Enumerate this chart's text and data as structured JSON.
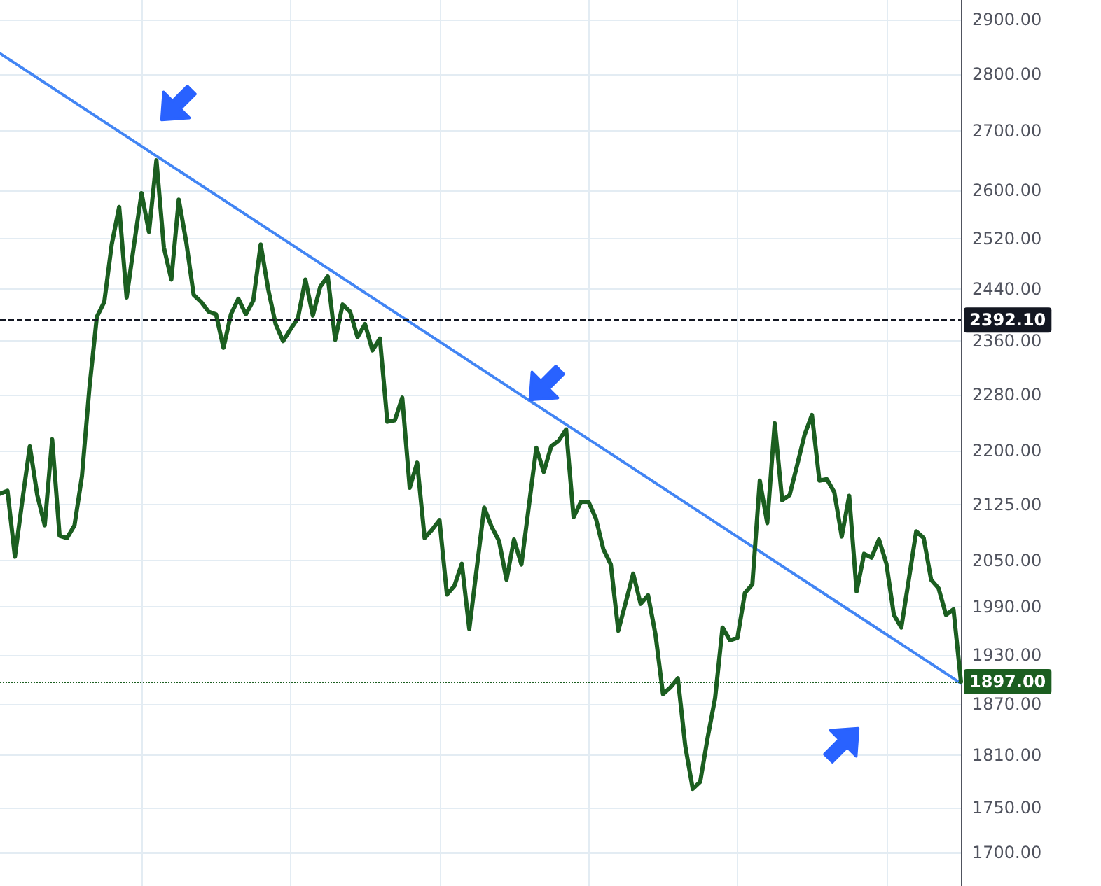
{
  "chart_data": {
    "type": "line",
    "categories": [
      null,
      null,
      null,
      null,
      null,
      null,
      null,
      null,
      null,
      null,
      null,
      null,
      null,
      null,
      null,
      null,
      null,
      null,
      null,
      null,
      null,
      null,
      null,
      null,
      null,
      null,
      null,
      null,
      null,
      null,
      null,
      null,
      null,
      null,
      null,
      null,
      null,
      null,
      null,
      null,
      null,
      null,
      null,
      null,
      null,
      null,
      null,
      null,
      null,
      null,
      null,
      null,
      null,
      null,
      null,
      null,
      null,
      null,
      null,
      null,
      null,
      null,
      null,
      null,
      null,
      null,
      null,
      null,
      null,
      null,
      null,
      null,
      null,
      null,
      null,
      null,
      null,
      null,
      null,
      null,
      null,
      null,
      null,
      null,
      null,
      null,
      null,
      null,
      null,
      null,
      null,
      null,
      null,
      null,
      null,
      null,
      null,
      null,
      null,
      null,
      null,
      null,
      null,
      null,
      null,
      null,
      null,
      null,
      null,
      null,
      null,
      null,
      null,
      null,
      null,
      null,
      null,
      null,
      null,
      null,
      null,
      null,
      null,
      null,
      null,
      null,
      null,
      null,
      null,
      null
    ],
    "series": [
      {
        "color": "#1b5e20",
        "values": [
          2140,
          2144,
          2055,
          2131,
          2206,
          2138,
          2097,
          2216,
          2083,
          2080,
          2097,
          2164,
          2290,
          2397,
          2420,
          2511,
          2572,
          2427,
          2511,
          2595,
          2531,
          2650,
          2506,
          2455,
          2584,
          2515,
          2431,
          2420,
          2405,
          2401,
          2350,
          2401,
          2425,
          2401,
          2422,
          2511,
          2440,
          2386,
          2360,
          2378,
          2395,
          2455,
          2399,
          2444,
          2460,
          2362,
          2416,
          2405,
          2366,
          2386,
          2346,
          2364,
          2241,
          2243,
          2276,
          2148,
          2183,
          2080,
          2091,
          2104,
          2006,
          2017,
          2046,
          1962,
          2040,
          2121,
          2095,
          2076,
          2025,
          2078,
          2045,
          2123,
          2204,
          2170,
          2206,
          2214,
          2230,
          2108,
          2129,
          2129,
          2106,
          2065,
          2045,
          1960,
          1996,
          2033,
          1994,
          2005,
          1955,
          1882,
          1890,
          1901,
          1820,
          1771,
          1779,
          1830,
          1877,
          1964,
          1948,
          1951,
          2008,
          2019,
          2158,
          2100,
          2239,
          2131,
          2138,
          2179,
          2222,
          2251,
          2158,
          2160,
          2142,
          2082,
          2137,
          2010,
          2059,
          2054,
          2078,
          2046,
          1980,
          1964,
          2025,
          2089,
          2080,
          2025,
          2014,
          1980,
          1987,
          1897
        ]
      },
      {
        "color": "#4285f4",
        "values": [
          2838,
          null,
          null,
          null,
          null,
          null,
          null,
          null,
          null,
          null,
          null,
          null,
          null,
          null,
          null,
          null,
          null,
          null,
          null,
          null,
          null,
          null,
          null,
          null,
          null,
          null,
          null,
          null,
          null,
          null,
          null,
          null,
          null,
          null,
          null,
          null,
          null,
          null,
          null,
          null,
          null,
          null,
          null,
          null,
          null,
          null,
          null,
          null,
          null,
          null,
          null,
          null,
          null,
          null,
          null,
          null,
          null,
          null,
          null,
          null,
          null,
          null,
          null,
          null,
          null,
          null,
          null,
          null,
          null,
          null,
          null,
          null,
          null,
          null,
          null,
          null,
          null,
          null,
          null,
          null,
          null,
          null,
          null,
          null,
          null,
          null,
          null,
          null,
          null,
          null,
          null,
          null,
          null,
          null,
          null,
          null,
          null,
          null,
          null,
          null,
          null,
          null,
          null,
          null,
          null,
          null,
          null,
          null,
          null,
          null,
          null,
          null,
          null,
          null,
          null,
          null,
          null,
          null,
          null,
          null,
          null,
          null,
          null,
          null,
          null,
          null,
          null,
          null,
          null,
          1895
        ]
      }
    ],
    "log": "y",
    "ylim": [
      1664,
      2937
    ],
    "yticks": [
      {
        "value": 1700,
        "label": "1700.00"
      },
      {
        "value": 1750,
        "label": "1750.00"
      },
      {
        "value": 1810,
        "label": "1810.00"
      },
      {
        "value": 1870,
        "label": "1870.00"
      },
      {
        "value": 1930,
        "label": "1930.00"
      },
      {
        "value": 1990,
        "label": "1990.00"
      },
      {
        "value": 2050,
        "label": "2050.00"
      },
      {
        "value": 2125,
        "label": "2125.00"
      },
      {
        "value": 2200,
        "label": "2200.00"
      },
      {
        "value": 2280,
        "label": "2280.00"
      },
      {
        "value": 2360,
        "label": "2360.00"
      },
      {
        "value": 2440,
        "label": "2440.00"
      },
      {
        "value": 2520,
        "label": "2520.00"
      },
      {
        "value": 2600,
        "label": "2600.00"
      },
      {
        "value": 2700,
        "label": "2700.00"
      },
      {
        "value": 2800,
        "label": "2800.00"
      },
      {
        "value": 2900,
        "label": "2900.00"
      }
    ],
    "ref_lines": [
      {
        "axis": "y",
        "value": 2392.1,
        "label": "2392.10",
        "color": "#131722",
        "line_style": "dashed"
      },
      {
        "axis": "y",
        "value": 1897,
        "label": "1897.00",
        "color": "#1b5e20",
        "line_style": "dotted"
      }
    ],
    "grid": true,
    "line_style": "solid",
    "tick_labels": "y"
  }
}
